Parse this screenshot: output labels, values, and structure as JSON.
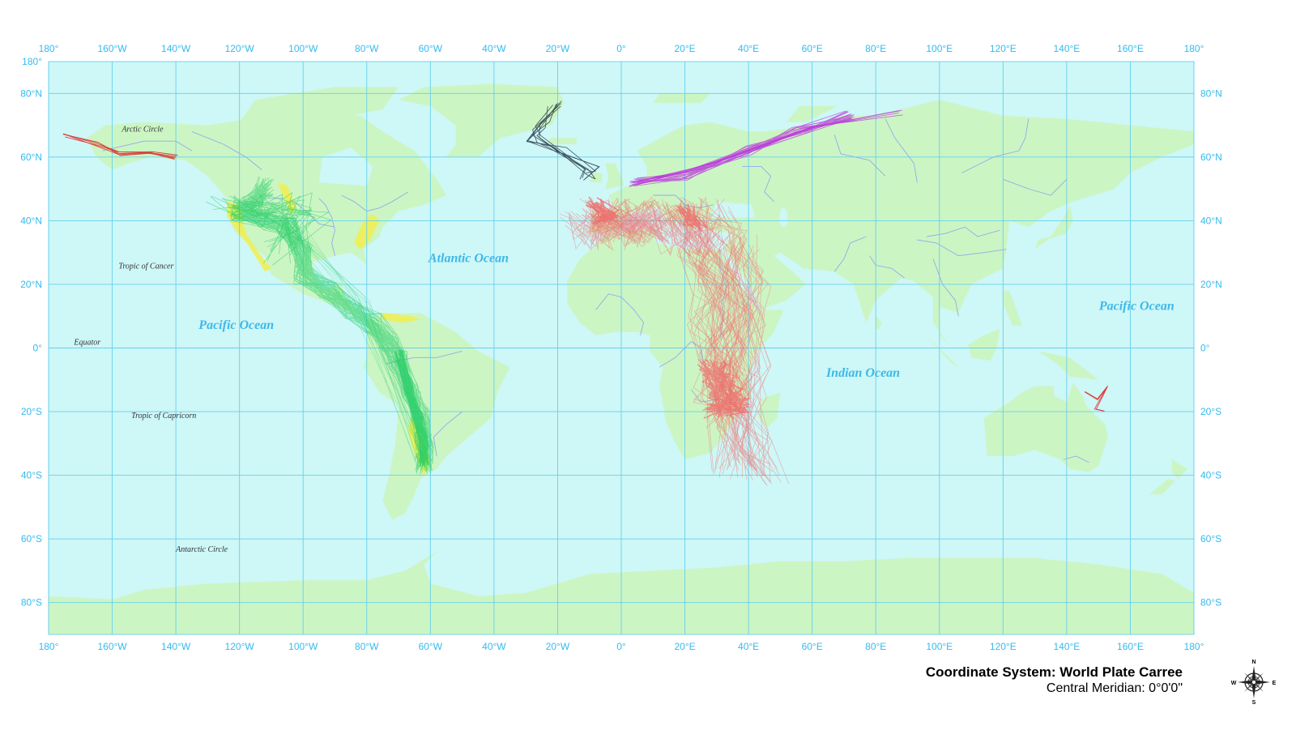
{
  "map": {
    "title": "Coordinate System: World Plate Carree",
    "subtitle": "Central Meridian: 0°0'0\"",
    "colors": {
      "ocean": "#cef7f7",
      "land": "#ccf5c4",
      "graticule": "#66d0ee",
      "rivers": "#9aa8e8",
      "tick_text": "#33bbee",
      "americas_tracks": "#22cc66",
      "americas_range": "#f0ee55",
      "africa_europe_tracks": "#f06a6a",
      "eurasia_tracks": "#bb33dd",
      "greenland_tracks": "#223344",
      "alaska_tracks": "#dd2222"
    },
    "longitude_labels": [
      "180°",
      "160°W",
      "140°W",
      "120°W",
      "100°W",
      "80°W",
      "60°W",
      "40°W",
      "20°W",
      "0°",
      "20°E",
      "40°E",
      "60°E",
      "80°E",
      "100°E",
      "120°E",
      "140°E",
      "160°E",
      "180°"
    ],
    "latitude_labels": [
      "180°",
      "80°N",
      "60°N",
      "40°N",
      "20°N",
      "0°",
      "20°S",
      "40°S",
      "60°S",
      "80°S"
    ],
    "ocean_labels": [
      {
        "name": "Pacific Ocean",
        "lon": -121,
        "lat": 6
      },
      {
        "name": "Atlantic Ocean",
        "lon": -48,
        "lat": 27
      },
      {
        "name": "Indian Ocean",
        "lon": 76,
        "lat": -9
      },
      {
        "name": "Pacific Ocean",
        "lon": 162,
        "lat": 12
      }
    ],
    "reference_lines": [
      {
        "name": "Arctic Circle",
        "lon": -157,
        "lat": 68
      },
      {
        "name": "Tropic of Cancer",
        "lon": -158,
        "lat": 25
      },
      {
        "name": "Equator",
        "lon": -172,
        "lat": 1
      },
      {
        "name": "Tropic of Capricorn",
        "lon": -154,
        "lat": -22
      },
      {
        "name": "Antarctic Circle",
        "lon": -140,
        "lat": -64
      }
    ],
    "compass": {
      "n": "N",
      "s": "S",
      "e": "E",
      "w": "W",
      "icon": "compass-rose-icon"
    }
  }
}
